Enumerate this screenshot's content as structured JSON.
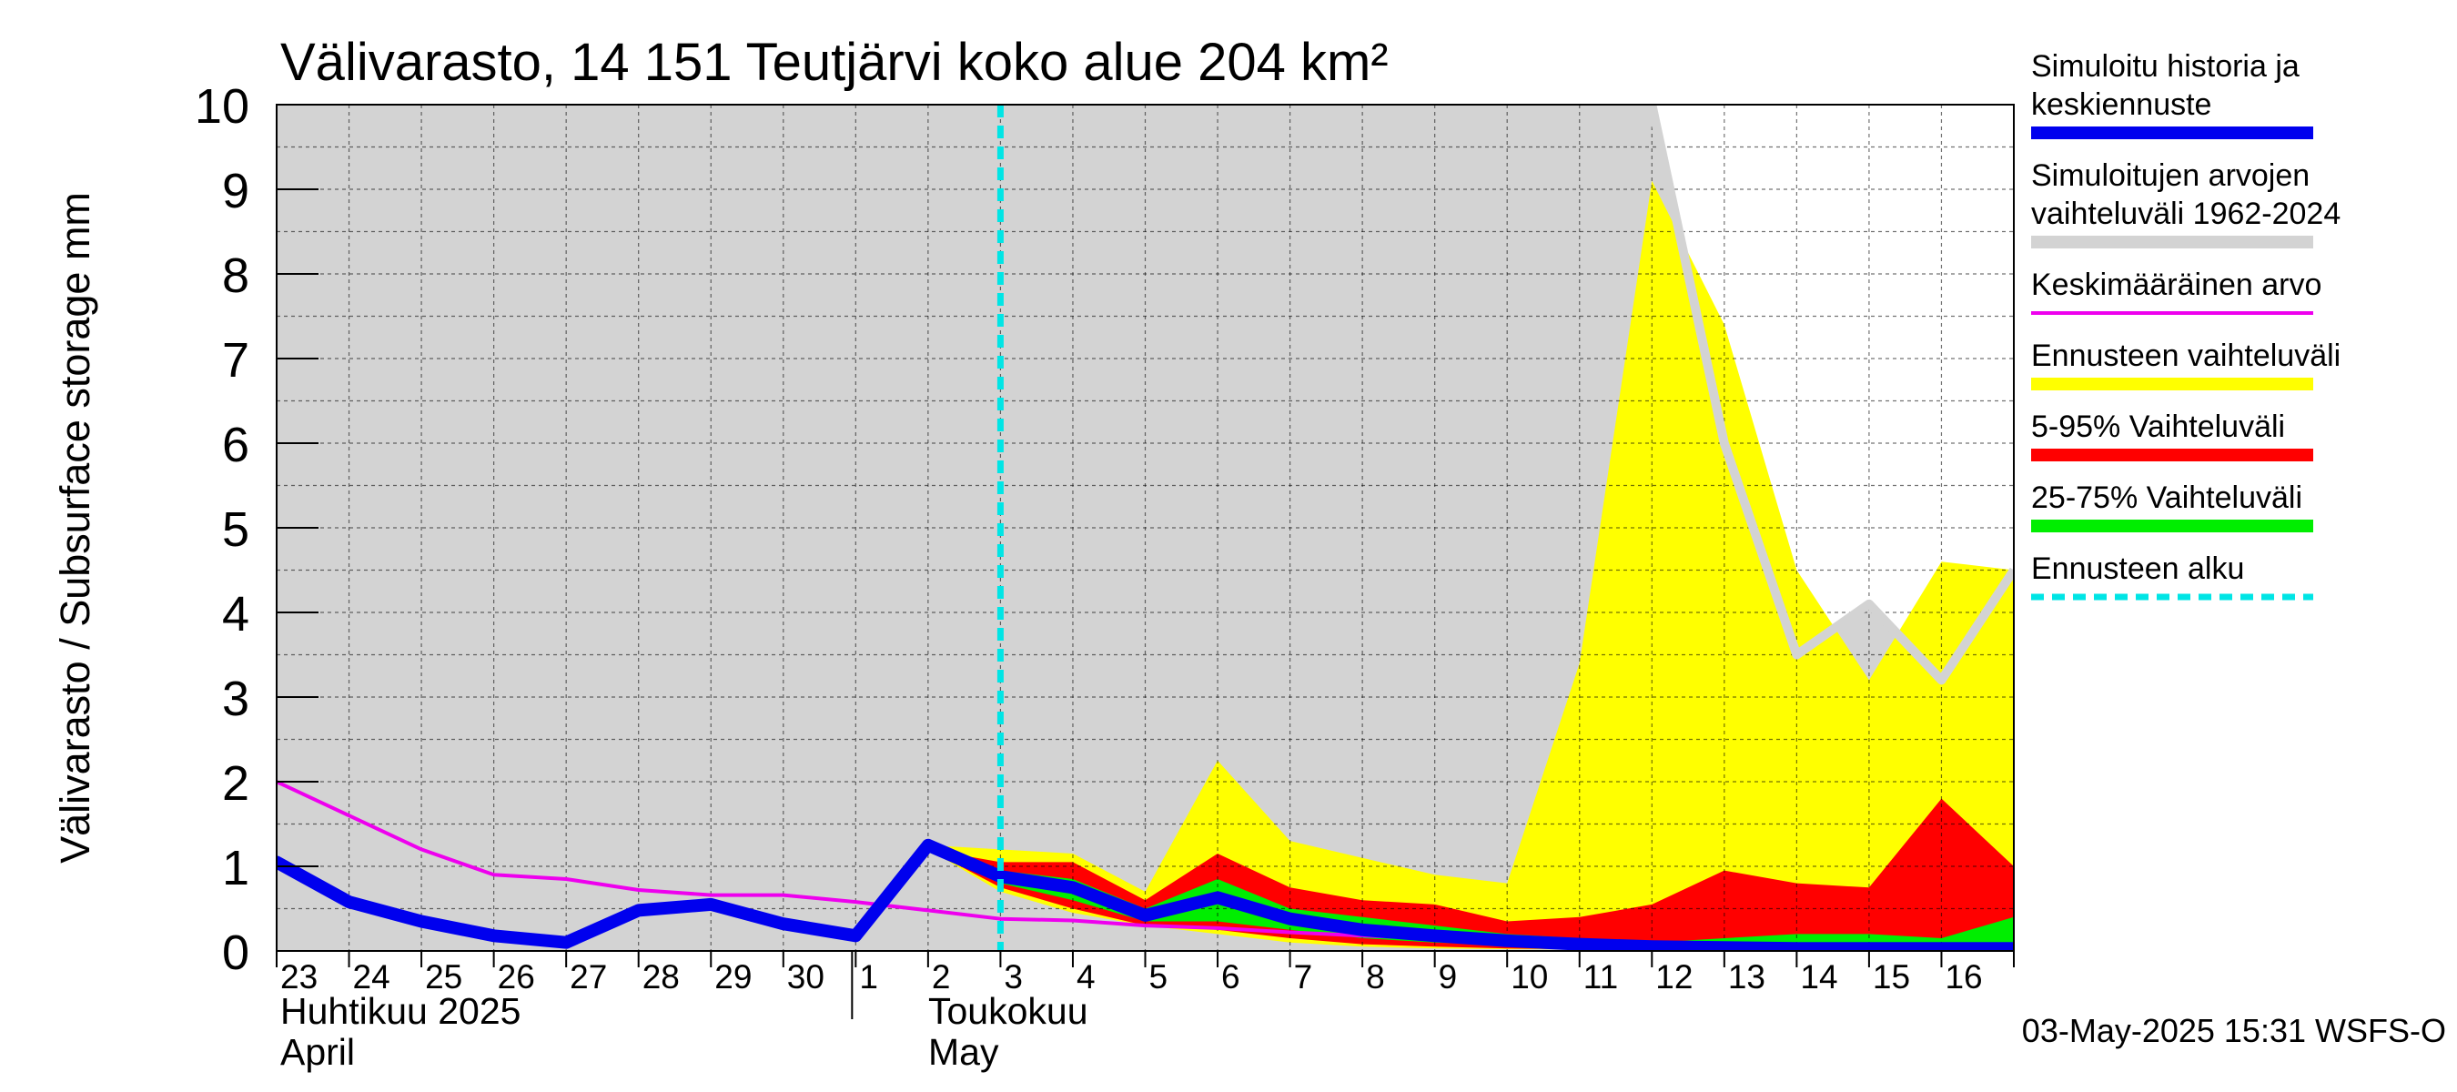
{
  "chart_data": {
    "type": "area",
    "title": "Välivarasto, 14 151 Teutjärvi koko alue 204 km²",
    "ylabel": "Välivarasto / Subsurface storage  mm",
    "ylim": [
      0,
      10
    ],
    "yticks": [
      0,
      1,
      2,
      3,
      4,
      5,
      6,
      7,
      8,
      9,
      10
    ],
    "grid": true,
    "legend_position": "right",
    "x_day_index_range": [
      0,
      24
    ],
    "x_tick_labels": [
      "23",
      "24",
      "25",
      "26",
      "27",
      "28",
      "29",
      "30",
      "1",
      "2",
      "3",
      "4",
      "5",
      "6",
      "7",
      "8",
      "9",
      "10",
      "11",
      "12",
      "13",
      "14",
      "15",
      "16"
    ],
    "month_labels": [
      {
        "fi": "Huhtikuu  2025",
        "en": "April"
      },
      {
        "fi": "Toukokuu",
        "en": "May"
      }
    ],
    "forecast_start_day_index": 10.0,
    "footer": "03-May-2025 15:31 WSFS-O",
    "legend": [
      {
        "label_lines": [
          "Simuloitu historia ja",
          "keskiennuste"
        ],
        "color": "#0000ee",
        "style": "thick"
      },
      {
        "label_lines": [
          "Simuloitujen arvojen",
          "vaihteluväli 1962-2024"
        ],
        "color": "#d3d3d3",
        "style": "thick"
      },
      {
        "label_lines": [
          "Keskimääräinen arvo"
        ],
        "color": "#ee00ee",
        "style": "thin"
      },
      {
        "label_lines": [
          "Ennusteen vaihteluväli"
        ],
        "color": "#ffff00",
        "style": "thick"
      },
      {
        "label_lines": [
          "5-95% Vaihteluväli"
        ],
        "color": "#ff0000",
        "style": "thick"
      },
      {
        "label_lines": [
          "25-75% Vaihteluväli"
        ],
        "color": "#00ee00",
        "style": "thick"
      },
      {
        "label_lines": [
          "Ennusteen alku"
        ],
        "color": "#00e5e5",
        "style": "dashed"
      }
    ],
    "series": {
      "hist_range": {
        "name": "Simuloitujen arvojen vaihteluväli 1962-2024",
        "color": "#d3d3d3",
        "upper": [
          [
            0,
            10
          ],
          [
            19,
            10
          ],
          [
            20,
            6
          ],
          [
            21,
            3.5
          ],
          [
            22,
            4.1
          ],
          [
            23,
            3.2
          ],
          [
            24,
            4.5
          ]
        ],
        "lower": [
          [
            0,
            0
          ],
          [
            24,
            0
          ]
        ],
        "upper_line_after_day": 19
      },
      "forecast_range": {
        "name": "Ennusteen vaihteluväli",
        "color": "#ffff00",
        "upper": [
          [
            9,
            1.25
          ],
          [
            10,
            1.2
          ],
          [
            11,
            1.15
          ],
          [
            12,
            0.7
          ],
          [
            13,
            2.25
          ],
          [
            14,
            1.3
          ],
          [
            15,
            1.1
          ],
          [
            16,
            0.9
          ],
          [
            17,
            0.8
          ],
          [
            18,
            3.4
          ],
          [
            19,
            9.1
          ],
          [
            20,
            7.4
          ],
          [
            21,
            4.5
          ],
          [
            22,
            3.2
          ],
          [
            23,
            4.6
          ],
          [
            24,
            4.5
          ]
        ],
        "lower": [
          [
            9,
            1.2
          ],
          [
            10,
            0.7
          ],
          [
            11,
            0.45
          ],
          [
            12,
            0.3
          ],
          [
            13,
            0.2
          ],
          [
            14,
            0.1
          ],
          [
            15,
            0.05
          ],
          [
            16,
            0.03
          ],
          [
            17,
            0.02
          ],
          [
            18,
            0.02
          ],
          [
            19,
            0.02
          ],
          [
            20,
            0.02
          ],
          [
            21,
            0.02
          ],
          [
            22,
            0.02
          ],
          [
            23,
            0.02
          ],
          [
            24,
            0.02
          ]
        ]
      },
      "p5_95": {
        "name": "5-95% Vaihteluväli",
        "color": "#ff0000",
        "upper": [
          [
            9,
            1.2
          ],
          [
            10,
            1.05
          ],
          [
            11,
            1.05
          ],
          [
            12,
            0.6
          ],
          [
            13,
            1.15
          ],
          [
            14,
            0.75
          ],
          [
            15,
            0.6
          ],
          [
            16,
            0.55
          ],
          [
            17,
            0.35
          ],
          [
            18,
            0.4
          ],
          [
            19,
            0.55
          ],
          [
            20,
            0.95
          ],
          [
            21,
            0.8
          ],
          [
            22,
            0.75
          ],
          [
            23,
            1.8
          ],
          [
            24,
            1.0
          ]
        ],
        "lower": [
          [
            9,
            1.2
          ],
          [
            10,
            0.75
          ],
          [
            11,
            0.5
          ],
          [
            12,
            0.3
          ],
          [
            13,
            0.25
          ],
          [
            14,
            0.15
          ],
          [
            15,
            0.08
          ],
          [
            16,
            0.05
          ],
          [
            17,
            0.03
          ],
          [
            18,
            0.02
          ],
          [
            19,
            0.02
          ],
          [
            20,
            0.02
          ],
          [
            21,
            0.02
          ],
          [
            22,
            0.02
          ],
          [
            23,
            0.02
          ],
          [
            24,
            0.02
          ]
        ]
      },
      "p25_75": {
        "name": "25-75% Vaihteluväli",
        "color": "#00ee00",
        "upper": [
          [
            9,
            1.2
          ],
          [
            10,
            0.95
          ],
          [
            11,
            0.85
          ],
          [
            12,
            0.5
          ],
          [
            13,
            0.85
          ],
          [
            14,
            0.5
          ],
          [
            15,
            0.4
          ],
          [
            16,
            0.3
          ],
          [
            17,
            0.2
          ],
          [
            18,
            0.15
          ],
          [
            19,
            0.1
          ],
          [
            20,
            0.15
          ],
          [
            21,
            0.2
          ],
          [
            22,
            0.2
          ],
          [
            23,
            0.15
          ],
          [
            24,
            0.4
          ]
        ],
        "lower": [
          [
            9,
            1.2
          ],
          [
            10,
            0.8
          ],
          [
            11,
            0.6
          ],
          [
            12,
            0.35
          ],
          [
            13,
            0.35
          ],
          [
            14,
            0.25
          ],
          [
            15,
            0.15
          ],
          [
            16,
            0.1
          ],
          [
            17,
            0.07
          ],
          [
            18,
            0.05
          ],
          [
            19,
            0.03
          ],
          [
            20,
            0.03
          ],
          [
            21,
            0.04
          ],
          [
            22,
            0.04
          ],
          [
            23,
            0.04
          ],
          [
            24,
            0.05
          ]
        ]
      },
      "mean_value": {
        "name": "Keskimääräinen arvo",
        "color": "#ee00ee",
        "points": [
          [
            0,
            2.0
          ],
          [
            1,
            1.6
          ],
          [
            2,
            1.2
          ],
          [
            3,
            0.9
          ],
          [
            4,
            0.85
          ],
          [
            5,
            0.72
          ],
          [
            6,
            0.66
          ],
          [
            7,
            0.66
          ],
          [
            8,
            0.58
          ],
          [
            9,
            0.48
          ],
          [
            10,
            0.38
          ],
          [
            11,
            0.36
          ],
          [
            12,
            0.3
          ],
          [
            13,
            0.27
          ],
          [
            14,
            0.22
          ],
          [
            15,
            0.18
          ],
          [
            16,
            0.15
          ],
          [
            17,
            0.13
          ],
          [
            18,
            0.11
          ],
          [
            19,
            0.1
          ],
          [
            20,
            0.08
          ],
          [
            21,
            0.07
          ],
          [
            22,
            0.07
          ],
          [
            23,
            0.06
          ],
          [
            24,
            0.06
          ]
        ]
      },
      "simulated": {
        "name": "Simuloitu historia ja keskiennuste",
        "color": "#0000ee",
        "points": [
          [
            0,
            1.05
          ],
          [
            1,
            0.58
          ],
          [
            2,
            0.35
          ],
          [
            3,
            0.18
          ],
          [
            4,
            0.1
          ],
          [
            5,
            0.48
          ],
          [
            6,
            0.55
          ],
          [
            7,
            0.32
          ],
          [
            8,
            0.18
          ],
          [
            9,
            1.25
          ],
          [
            10,
            0.88
          ],
          [
            11,
            0.75
          ],
          [
            12,
            0.42
          ],
          [
            13,
            0.63
          ],
          [
            14,
            0.38
          ],
          [
            15,
            0.25
          ],
          [
            16,
            0.18
          ],
          [
            17,
            0.12
          ],
          [
            18,
            0.08
          ],
          [
            19,
            0.05
          ],
          [
            20,
            0.04
          ],
          [
            21,
            0.03
          ],
          [
            22,
            0.03
          ],
          [
            23,
            0.03
          ],
          [
            24,
            0.03
          ]
        ]
      }
    }
  }
}
